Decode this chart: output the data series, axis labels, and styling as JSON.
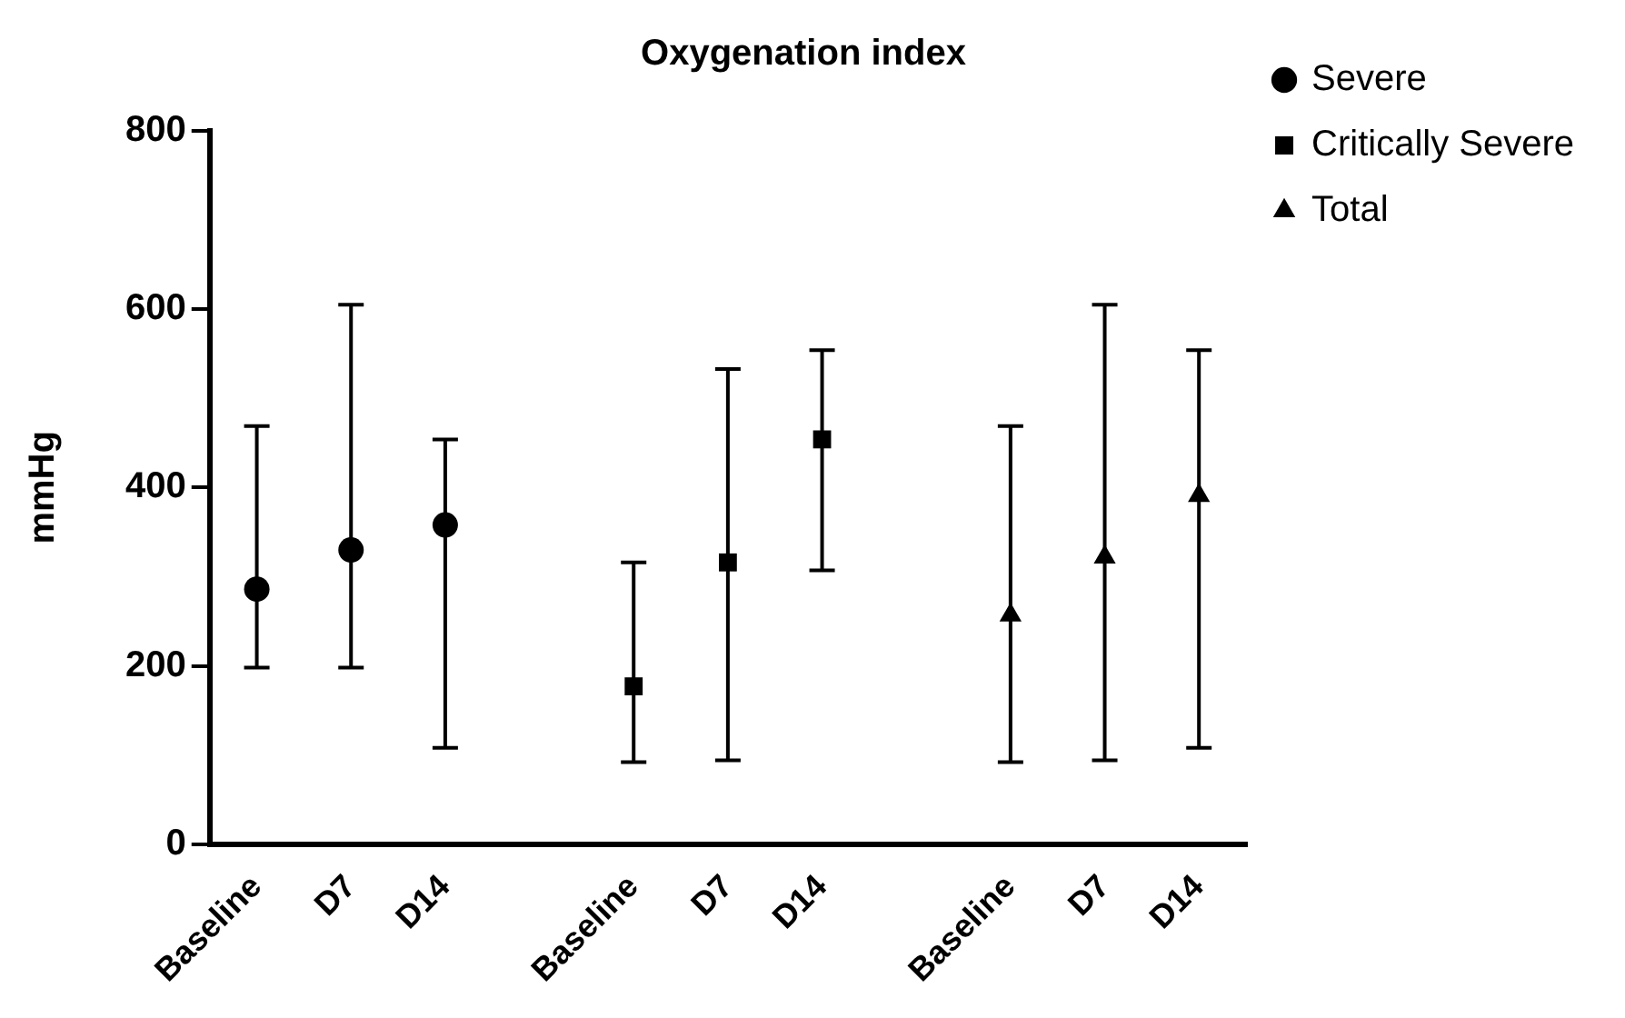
{
  "chart_data": {
    "type": "scatter",
    "title": "Oxygenation index",
    "ylabel": "mmHg",
    "categories": [
      "Baseline",
      "D7",
      "D14",
      null,
      "Baseline",
      "D7",
      "D14",
      null,
      "Baseline",
      "D7",
      "D14"
    ],
    "ylim": [
      0,
      800
    ],
    "yticks": [
      0,
      200,
      400,
      600,
      800
    ],
    "grid": false,
    "legend": "top right",
    "series": [
      {
        "name": "Severe",
        "color": "#000000",
        "marker": "circle",
        "values": [
          286,
          330,
          358,
          null,
          null,
          null,
          null,
          null,
          null,
          null,
          null
        ],
        "errors": [
          [
            198,
            469
          ],
          [
            198,
            605
          ],
          [
            108,
            454
          ],
          null,
          null,
          null,
          null,
          null,
          null,
          null,
          null
        ]
      },
      {
        "name": "Critically Severe",
        "color": "#000000",
        "marker": "square",
        "values": [
          null,
          null,
          null,
          null,
          177,
          316,
          454,
          null,
          null,
          null,
          null
        ],
        "errors": [
          null,
          null,
          null,
          null,
          [
            92,
            316
          ],
          [
            94,
            533
          ],
          [
            307,
            554
          ],
          null,
          null,
          null,
          null
        ]
      },
      {
        "name": "Total",
        "color": "#000000",
        "marker": "triangle",
        "values": [
          null,
          null,
          null,
          null,
          null,
          null,
          null,
          null,
          257,
          322,
          391
        ],
        "errors": [
          null,
          null,
          null,
          null,
          null,
          null,
          null,
          null,
          [
            92,
            469
          ],
          [
            94,
            605
          ],
          [
            108,
            554
          ]
        ]
      }
    ]
  }
}
